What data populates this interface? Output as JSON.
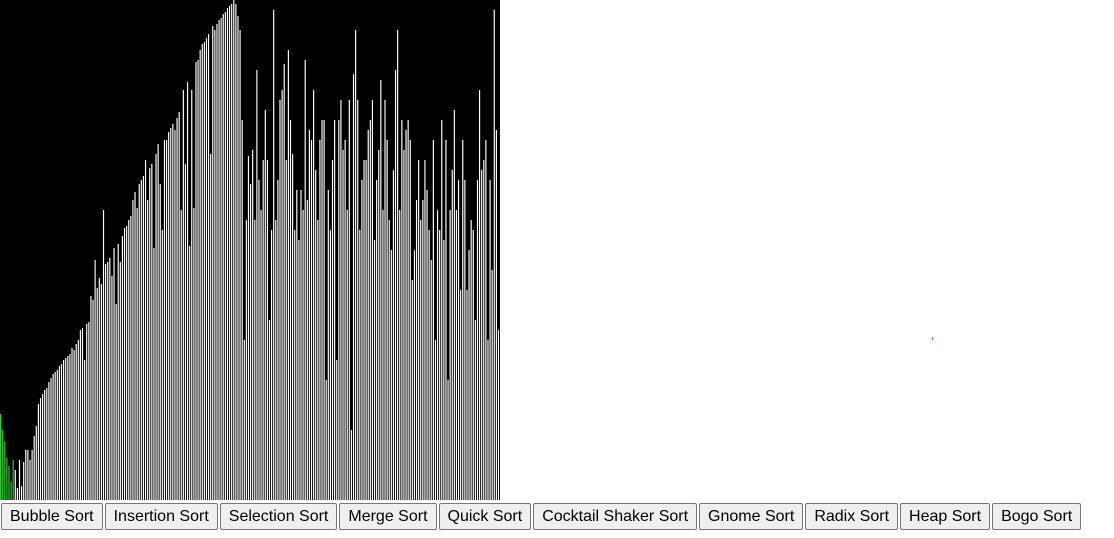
{
  "visualizer": {
    "array_values": [
      86,
      70,
      58,
      42,
      34,
      18,
      40,
      30,
      12,
      40,
      14,
      38,
      50,
      50,
      40,
      50,
      64,
      74,
      96,
      102,
      106,
      110,
      112,
      118,
      122,
      126,
      128,
      130,
      134,
      136,
      140,
      142,
      144,
      146,
      152,
      150,
      156,
      160,
      170,
      172,
      140,
      176,
      178,
      204,
      200,
      240,
      212,
      222,
      216,
      290,
      236,
      238,
      242,
      224,
      252,
      196,
      256,
      238,
      264,
      272,
      274,
      280,
      284,
      300,
      308,
      292,
      316,
      320,
      324,
      340,
      300,
      332,
      336,
      252,
      346,
      356,
      316,
      270,
      360,
      360,
      368,
      372,
      376,
      370,
      382,
      388,
      290,
      410,
      336,
      418,
      254,
      410,
      292,
      438,
      440,
      450,
      456,
      458,
      462,
      466,
      346,
      474,
      470,
      476,
      480,
      482,
      486,
      488,
      492,
      494,
      496,
      500,
      496,
      484,
      470,
      380,
      160,
      280,
      344,
      316,
      350,
      280,
      430,
      320,
      290,
      340,
      390,
      340,
      180,
      270,
      490,
      280,
      320,
      400,
      410,
      436,
      340,
      450,
      380,
      346,
      270,
      310,
      260,
      310,
      290,
      440,
      300,
      370,
      360,
      410,
      330,
      280,
      360,
      380,
      380,
      120,
      310,
      270,
      340,
      380,
      140,
      380,
      400,
      350,
      360,
      290,
      400,
      70,
      426,
      470,
      400,
      270,
      320,
      340,
      340,
      370,
      380,
      400,
      260,
      320,
      350,
      420,
      290,
      400,
      360,
      280,
      250,
      330,
      430,
      470,
      290,
      380,
      350,
      370,
      380,
      360,
      220,
      250,
      300,
      340,
      280,
      300,
      340,
      310,
      270,
      240,
      360,
      160,
      290,
      270,
      380,
      260,
      360,
      120,
      290,
      330,
      390,
      290,
      320,
      210,
      360,
      320,
      210,
      250,
      280,
      270,
      180,
      320,
      410,
      330,
      340,
      360,
      160,
      320,
      230,
      490,
      370,
      170
    ],
    "sorted_prefix": 7,
    "bar_color": "#ffffff",
    "highlight_color": "#33cc33",
    "background_color": "#000000"
  },
  "buttons": [
    {
      "label": "Bubble Sort"
    },
    {
      "label": "Insertion Sort"
    },
    {
      "label": "Selection Sort"
    },
    {
      "label": "Merge Sort"
    },
    {
      "label": "Quick Sort"
    },
    {
      "label": "Cocktail Shaker Sort"
    },
    {
      "label": "Gnome Sort"
    },
    {
      "label": "Radix Sort"
    },
    {
      "label": "Heap Sort"
    },
    {
      "label": "Bogo Sort"
    }
  ]
}
